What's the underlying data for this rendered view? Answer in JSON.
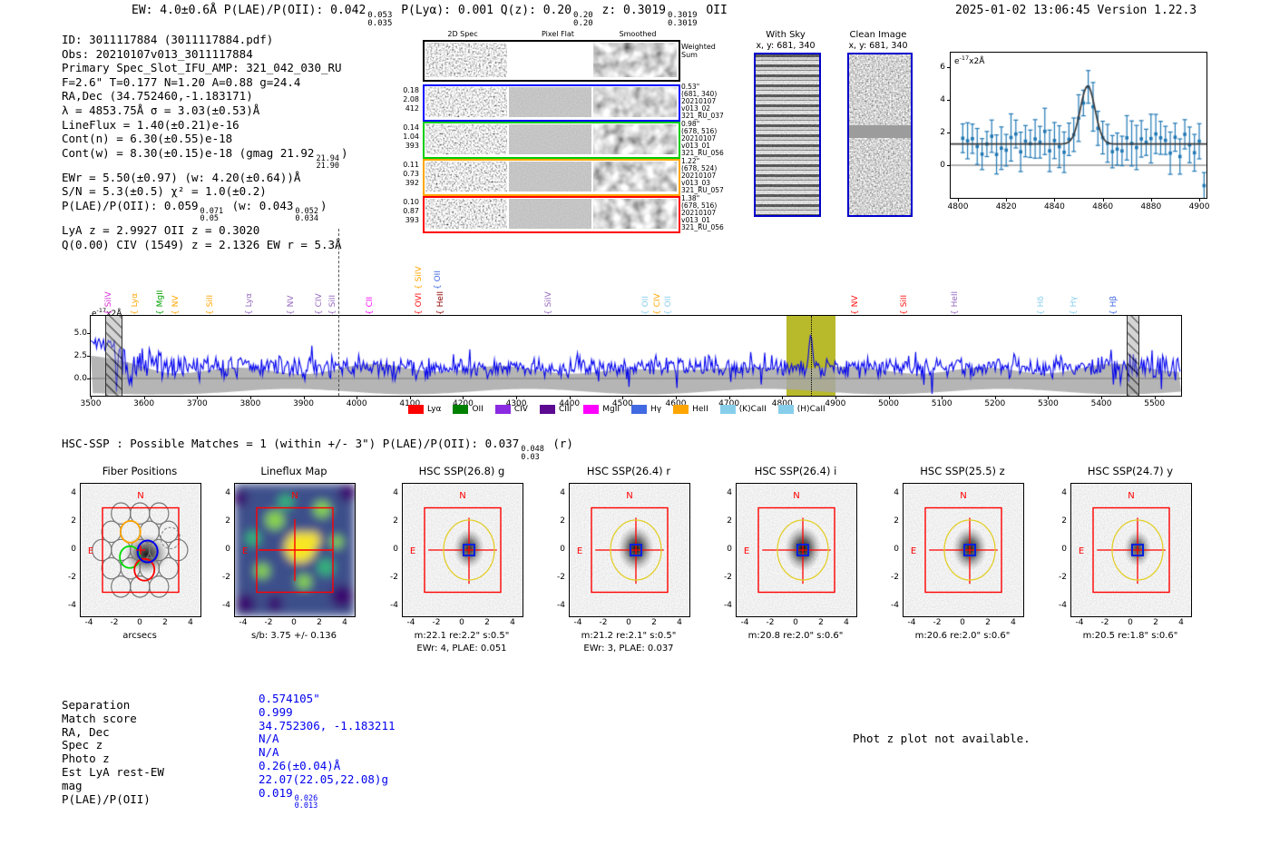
{
  "header": {
    "left_segments": [
      {
        "t": "EW: 4.0±0.6Å  P(LAE)/P(OII): 0.042"
      },
      {
        "stack": [
          "0.053",
          "0.035"
        ]
      },
      {
        "t": "  P(Lyα): 0.001  Q(z): 0.20"
      },
      {
        "stack": [
          "0.20",
          "0.20"
        ]
      },
      {
        "t": "  z: 0.3019"
      },
      {
        "stack": [
          "0.3019",
          "0.3019"
        ]
      },
      {
        "t": " OII"
      }
    ],
    "timestamp": "2025-01-02 13:06:45",
    "version": "Version 1.22.3"
  },
  "info_block": {
    "lines": [
      {
        "segs": [
          {
            "t": "ID: 3011117884 (3011117884.pdf)"
          }
        ]
      },
      {
        "segs": [
          {
            "t": "Obs: 20210107v013_3011117884"
          }
        ]
      },
      {
        "segs": [
          {
            "t": "Primary Spec_Slot_IFU_AMP: 321_042_030_RU"
          }
        ]
      },
      {
        "segs": [
          {
            "t": "F=2.6\"  T=0.177  N=1.20  A=0.88  g=24.4"
          }
        ]
      },
      {
        "segs": [
          {
            "t": "RA,Dec (34.752460,-1.183171)"
          }
        ]
      },
      {
        "segs": [
          {
            "t": "λ = 4853.75Å  σ = 3.03(±0.53)Å"
          }
        ]
      },
      {
        "segs": [
          {
            "t": "LineFlux = 1.40(±0.21)e-16"
          }
        ]
      },
      {
        "segs": [
          {
            "t": "Cont(n) = 6.30(±0.55)e-18"
          }
        ]
      },
      {
        "segs": [
          {
            "t": "Cont(w) = 8.30(±0.15)e-18 (gmag 21.92"
          },
          {
            "stack": [
              "21.94",
              "21.90"
            ]
          },
          {
            "t": ")"
          }
        ]
      },
      {
        "segs": [
          {
            "t": "EWr = 5.50(±0.97) (w: 4.20(±0.64))Å"
          }
        ]
      },
      {
        "segs": [
          {
            "t": "S/N = 5.3(±0.5)  χ² = 1.0(±0.2)"
          }
        ]
      },
      {
        "segs": [
          {
            "t": "P(LAE)/P(OII): 0.059"
          },
          {
            "stack": [
              "0.071",
              "0.05"
            ]
          },
          {
            "t": " (w: 0.043"
          },
          {
            "stack": [
              "0.052",
              "0.034"
            ]
          },
          {
            "t": ")"
          }
        ]
      },
      {
        "segs": [
          {
            "t": "LyA z = 2.9927  OII z = 0.3020"
          }
        ]
      },
      {
        "segs": [
          {
            "t": "Q(0.00) CIV (1549) z = 2.1326  EW r = 5.3Å"
          }
        ]
      }
    ]
  },
  "spec2d": {
    "col_titles": [
      "2D Spec",
      "Pixel Flat",
      "Smoothed"
    ],
    "weighted_sum_label": "Weighted\nSum",
    "rows": [
      {
        "color": "#0000ff",
        "left": [
          "0.18",
          "2.08",
          "412"
        ],
        "right": [
          "0.53\"",
          "(681, 340)",
          "20210107",
          "v013_02",
          "321_RU_037"
        ]
      },
      {
        "color": "#00cc00",
        "left": [
          "0.14",
          "1.04",
          "393"
        ],
        "right": [
          "0.98\"",
          "(678, 516)",
          "20210107",
          "v013_01",
          "321_RU_056"
        ]
      },
      {
        "color": "#ffa500",
        "left": [
          "0.11",
          "0.73",
          "392"
        ],
        "right": [
          "1.22\"",
          "(678, 524)",
          "20210107",
          "v013_03",
          "321_RU_057"
        ]
      },
      {
        "color": "#ff0000",
        "left": [
          "0.10",
          "0.87",
          "393"
        ],
        "right": [
          "1.38\"",
          "(678, 516)",
          "20210107",
          "v013_01",
          "321_RU_056"
        ]
      }
    ]
  },
  "sky_panels": {
    "with_sky": {
      "title": "With Sky",
      "subtitle": "x, y: 681, 340"
    },
    "clean": {
      "title": "Clean Image",
      "subtitle": "x, y: 681, 340"
    }
  },
  "flux_unit": {
    "prefix": "e",
    "exponent": "-17",
    "suffix": "x2Å"
  },
  "chart_data": [
    {
      "type": "line",
      "name": "line-fit-zoom",
      "xlim": [
        4797,
        4903
      ],
      "ylim": [
        -2.0,
        6.9
      ],
      "x_ticks": [
        4800,
        4820,
        4840,
        4860,
        4880,
        4900
      ],
      "y_ticks": [
        0,
        2,
        4,
        6
      ],
      "ylabel": "e-17x2Å",
      "gaussian_fit": {
        "center": 4853.75,
        "sigma": 3.03,
        "amplitude": 3.55,
        "continuum": 1.3
      },
      "series": [
        {
          "name": "spectrum-errorbars",
          "style": "errorbar",
          "color": "#1f77b4",
          "n_points": 51
        },
        {
          "name": "gaussian-fit",
          "style": "line",
          "color": "#3a3a3a"
        }
      ]
    },
    {
      "type": "line",
      "name": "full-spectrum",
      "xlim": [
        3500,
        5550
      ],
      "ylim": [
        -1.9,
        6.9
      ],
      "x_ticks": [
        3500,
        3600,
        3700,
        3800,
        3900,
        4000,
        4100,
        4200,
        4300,
        4400,
        4500,
        4600,
        4700,
        4800,
        4900,
        5000,
        5100,
        5200,
        5300,
        5400,
        5500
      ],
      "y_ticks": [
        0.0,
        2.5,
        5.0
      ],
      "ylabel": "e-17x2Å",
      "line_color": "#0000ee",
      "continuum_level": 1.25,
      "detected_line": {
        "wavelength": 4853.75,
        "highlight_band": [
          4808,
          4900
        ],
        "band_color": "#b9b92c"
      },
      "masked_bands": [
        [
          3528,
          3556
        ],
        [
          5448,
          5468
        ]
      ],
      "dashdot_line_x": 3966,
      "legend": [
        {
          "label": "Lyα",
          "color": "#ff0000"
        },
        {
          "label": "OII",
          "color": "#008000"
        },
        {
          "label": "CIV",
          "color": "#8a2be2"
        },
        {
          "label": "CIII",
          "color": "#5b0a91"
        },
        {
          "label": "MgII",
          "color": "#ff00ff"
        },
        {
          "label": "Hγ",
          "color": "#4169e1"
        },
        {
          "label": "HeII",
          "color": "#ffa500"
        },
        {
          "label": "(K)CaII",
          "color": "#87ceeb"
        },
        {
          "label": "(H)CaII",
          "color": "#87ceeb"
        }
      ],
      "line_annotations": [
        {
          "label": "SiIV",
          "wavelength": 3552,
          "color": "#d62bd6",
          "row": 0
        },
        {
          "label": "Lyα",
          "wavelength": 3600,
          "color": "#ffa500",
          "row": 0
        },
        {
          "label": "MgII",
          "wavelength": 3648,
          "color": "#00a000",
          "row": 0
        },
        {
          "label": "NV",
          "wavelength": 3678,
          "color": "#ffa500",
          "row": 0
        },
        {
          "label": "SiII",
          "wavelength": 3743,
          "color": "#ffa500",
          "row": 0
        },
        {
          "label": "Lyα",
          "wavelength": 3816,
          "color": "#9467bd",
          "row": 0
        },
        {
          "label": "NV",
          "wavelength": 3894,
          "color": "#9467bd",
          "row": 0
        },
        {
          "label": "CIV",
          "wavelength": 3947,
          "color": "#9467bd",
          "row": 0
        },
        {
          "label": "SiII",
          "wavelength": 3972,
          "color": "#9467bd",
          "row": 0
        },
        {
          "label": "CII",
          "wavelength": 4042,
          "color": "#ff00ff",
          "row": 0
        },
        {
          "label": "OVI",
          "wavelength": 4135,
          "color": "#ff1010",
          "row": 0
        },
        {
          "label": "HeII",
          "wavelength": 4175,
          "color": "#8b0000",
          "row": 0
        },
        {
          "label": "SiIV",
          "wavelength": 4134,
          "color": "#ffa500",
          "row": 1
        },
        {
          "label": "OII",
          "wavelength": 4170,
          "color": "#4169e1",
          "row": 1
        },
        {
          "label": "SiIV",
          "wavelength": 4378,
          "color": "#9467bd",
          "row": 0
        },
        {
          "label": "OII",
          "wavelength": 4561,
          "color": "#87ceeb",
          "row": 0
        },
        {
          "label": "CIV",
          "wavelength": 4583,
          "color": "#ffa500",
          "row": 0
        },
        {
          "label": "OII",
          "wavelength": 4604,
          "color": "#87ceeb",
          "row": 0
        },
        {
          "label": "NV",
          "wavelength": 4955,
          "color": "#ff1010",
          "row": 0
        },
        {
          "label": "SiII",
          "wavelength": 5047,
          "color": "#ff1010",
          "row": 0
        },
        {
          "label": "HeII",
          "wavelength": 5143,
          "color": "#9467bd",
          "row": 0
        },
        {
          "label": "Hδ",
          "wavelength": 5305,
          "color": "#87ceeb",
          "row": 0
        },
        {
          "label": "Hγ",
          "wavelength": 5365,
          "color": "#87ceeb",
          "row": 0
        },
        {
          "label": "Hβ",
          "wavelength": 5440,
          "color": "#4169e1",
          "row": 0
        }
      ]
    }
  ],
  "hsc_line": {
    "segments": [
      {
        "t": "HSC-SSP : Possible Matches = 1 (within +/- 3\")  P(LAE)/P(OII): 0.037"
      },
      {
        "stack": [
          "0.048",
          "0.03"
        ]
      },
      {
        "t": " (r)"
      }
    ]
  },
  "cutouts": {
    "axis_ticks": [
      -4,
      -2,
      0,
      2,
      4
    ],
    "compass": {
      "north": "N",
      "east": "E"
    },
    "panels": [
      {
        "kind": "fiber",
        "title": "Fiber Positions",
        "sub1": "arcsecs",
        "sub2": ""
      },
      {
        "kind": "lineflux",
        "title": "Lineflux Map",
        "sub1": "s/b: 3.75 +/- 0.136",
        "sub2": ""
      },
      {
        "kind": "hsc",
        "title": "HSC SSP(26.8) g",
        "sub1": "m:22.1  re:2.2\"  s:0.5\"",
        "sub2": "EWr: 4, PLAE: 0.051"
      },
      {
        "kind": "hsc",
        "title": "HSC SSP(26.4) r",
        "sub1": "m:21.2  re:2.1\"  s:0.5\"",
        "sub2": "EWr: 3, PLAE: 0.037"
      },
      {
        "kind": "hsc",
        "title": "HSC SSP(26.4) i",
        "sub1": "m:20.8  re:2.0\"  s:0.6\"",
        "sub2": ""
      },
      {
        "kind": "hsc",
        "title": "HSC SSP(25.5) z",
        "sub1": "m:20.6  re:2.0\"  s:0.6\"",
        "sub2": ""
      },
      {
        "kind": "hsc",
        "title": "HSC SSP(24.7) y",
        "sub1": "m:20.5  re:1.8\"  s:0.6\"",
        "sub2": ""
      }
    ]
  },
  "match_table": {
    "rows": [
      {
        "label": "Separation",
        "value": "0.574105\""
      },
      {
        "label": "Match score",
        "value": "0.999"
      },
      {
        "label": "RA, Dec",
        "value": "34.752306, -1.183211"
      },
      {
        "label": "Spec z",
        "value": "N/A"
      },
      {
        "label": "Photo z",
        "value": "N/A"
      },
      {
        "label": "Est LyA rest-EW",
        "value": "0.26(±0.04)Å"
      },
      {
        "label": "mag",
        "value": "22.07(22.05,22.08)g"
      },
      {
        "label": "P(LAE)/P(OII)",
        "value": "0.019",
        "stack": [
          "0.026",
          "0.013"
        ]
      }
    ],
    "value_color": "#0000ee"
  },
  "photz_note": "Phot z plot not available."
}
